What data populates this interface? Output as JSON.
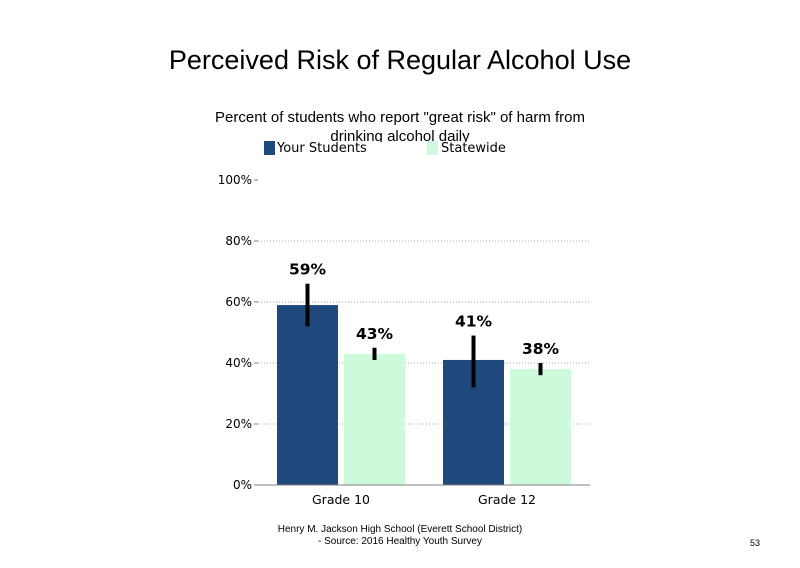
{
  "page": {
    "footer_line1": "Henry M. Jackson High School (Everett School District)",
    "footer_line2": "- Source: 2016 Healthy Youth Survey",
    "page_number": "53"
  },
  "chart_data": {
    "type": "bar",
    "title": "Perceived Risk of Regular Alcohol Use",
    "subtitle": "Percent of students who report \"great risk\" of harm from drinking alcohol daily",
    "categories": [
      "Grade 10",
      "Grade 12"
    ],
    "series": [
      {
        "name": "Your Students",
        "color": "#1f497d",
        "values": [
          59,
          41
        ],
        "labels": [
          "59%",
          "41%"
        ],
        "error_low": [
          52,
          32
        ],
        "error_high": [
          66,
          49
        ]
      },
      {
        "name": "Statewide",
        "color": "#ccfadb",
        "values": [
          43,
          38
        ],
        "labels": [
          "43%",
          "38%"
        ],
        "error_low": [
          41,
          36
        ],
        "error_high": [
          45,
          40
        ]
      }
    ],
    "yticks": [
      "0%",
      "20%",
      "40%",
      "60%",
      "80%",
      "100%"
    ],
    "ylim": [
      0,
      100
    ],
    "grid": "dotted horizontal",
    "legend_position": "top"
  }
}
